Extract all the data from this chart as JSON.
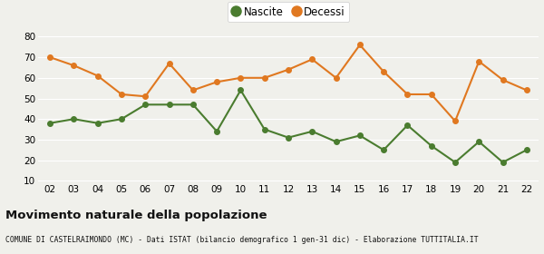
{
  "years": [
    "02",
    "03",
    "04",
    "05",
    "06",
    "07",
    "08",
    "09",
    "10",
    "11",
    "12",
    "13",
    "14",
    "15",
    "16",
    "17",
    "18",
    "19",
    "20",
    "21",
    "22"
  ],
  "nascite": [
    38,
    40,
    38,
    40,
    47,
    47,
    47,
    34,
    54,
    35,
    31,
    34,
    29,
    32,
    25,
    37,
    27,
    19,
    29,
    19,
    25
  ],
  "decessi": [
    70,
    66,
    61,
    52,
    51,
    67,
    54,
    58,
    60,
    60,
    64,
    69,
    60,
    76,
    63,
    52,
    52,
    39,
    68,
    59,
    54
  ],
  "nascite_color": "#4a7c2f",
  "decessi_color": "#e07820",
  "background_color": "#f0f0eb",
  "grid_color": "#ffffff",
  "title": "Movimento naturale della popolazione",
  "subtitle": "COMUNE DI CASTELRAIMONDO (MC) - Dati ISTAT (bilancio demografico 1 gen-31 dic) - Elaborazione TUTTITALIA.IT",
  "ylabel_min": 10,
  "ylabel_max": 80,
  "ylabel_step": 10,
  "legend_nascite": "Nascite",
  "legend_decessi": "Decessi",
  "marker_size": 4,
  "line_width": 1.5
}
